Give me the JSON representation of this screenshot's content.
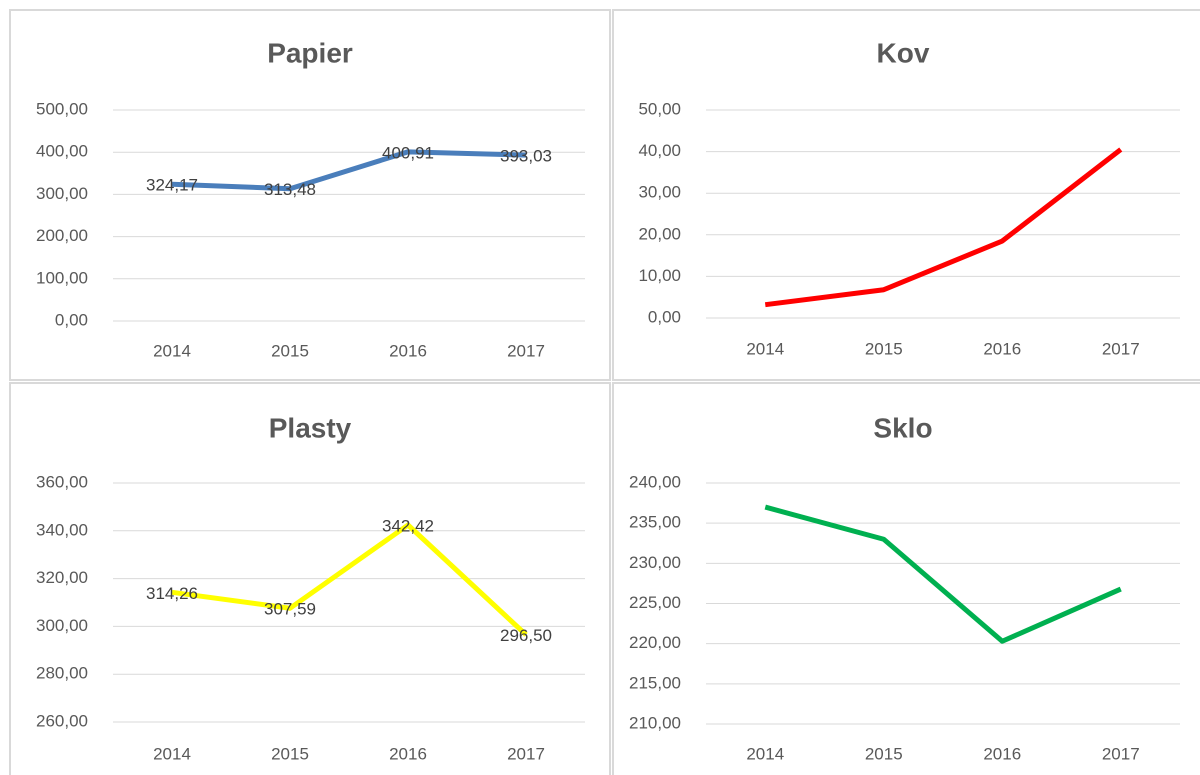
{
  "chart_data": [
    {
      "type": "line",
      "title": "Papier",
      "categories": [
        "2014",
        "2015",
        "2016",
        "2017"
      ],
      "values": [
        324.17,
        313.48,
        400.91,
        393.03
      ],
      "value_labels": [
        "324,17",
        "313,48",
        "400,91",
        "393,03"
      ],
      "color": "#4a7ebb",
      "ylim": [
        0,
        500
      ],
      "yticks": [
        {
          "value": 0,
          "label": "0,00"
        },
        {
          "value": 100,
          "label": "100,00"
        },
        {
          "value": 200,
          "label": "200,00"
        },
        {
          "value": 300,
          "label": "300,00"
        },
        {
          "value": 400,
          "label": "400,00"
        },
        {
          "value": 500,
          "label": "500,00"
        }
      ],
      "grid": true
    },
    {
      "type": "line",
      "title": "Kov",
      "categories": [
        "2014",
        "2015",
        "2016",
        "2017"
      ],
      "values": [
        3.2,
        6.8,
        18.5,
        40.5
      ],
      "color": "#ff0000",
      "ylim": [
        0,
        50
      ],
      "yticks": [
        {
          "value": 0,
          "label": "0,00"
        },
        {
          "value": 10,
          "label": "10,00"
        },
        {
          "value": 20,
          "label": "20,00"
        },
        {
          "value": 30,
          "label": "30,00"
        },
        {
          "value": 40,
          "label": "40,00"
        },
        {
          "value": 50,
          "label": "50,00"
        }
      ],
      "grid": true
    },
    {
      "type": "line",
      "title": "Plasty",
      "categories": [
        "2014",
        "2015",
        "2016",
        "2017"
      ],
      "values": [
        314.26,
        307.59,
        342.42,
        296.5
      ],
      "value_labels": [
        "314,26",
        "307,59",
        "342,42",
        "296,50"
      ],
      "color": "#ffff00",
      "ylim": [
        260,
        360
      ],
      "yticks": [
        {
          "value": 260,
          "label": "260,00"
        },
        {
          "value": 280,
          "label": "280,00"
        },
        {
          "value": 300,
          "label": "300,00"
        },
        {
          "value": 320,
          "label": "320,00"
        },
        {
          "value": 340,
          "label": "340,00"
        },
        {
          "value": 360,
          "label": "360,00"
        }
      ],
      "grid": true
    },
    {
      "type": "line",
      "title": "Sklo",
      "categories": [
        "2014",
        "2015",
        "2016",
        "2017"
      ],
      "values": [
        237.0,
        233.0,
        220.3,
        226.8
      ],
      "color": "#00b050",
      "ylim": [
        210,
        240
      ],
      "yticks": [
        {
          "value": 210,
          "label": "210,00"
        },
        {
          "value": 215,
          "label": "215,00"
        },
        {
          "value": 220,
          "label": "220,00"
        },
        {
          "value": 225,
          "label": "225,00"
        },
        {
          "value": 230,
          "label": "230,00"
        },
        {
          "value": 235,
          "label": "235,00"
        },
        {
          "value": 240,
          "label": "240,00"
        }
      ],
      "grid": true
    }
  ]
}
